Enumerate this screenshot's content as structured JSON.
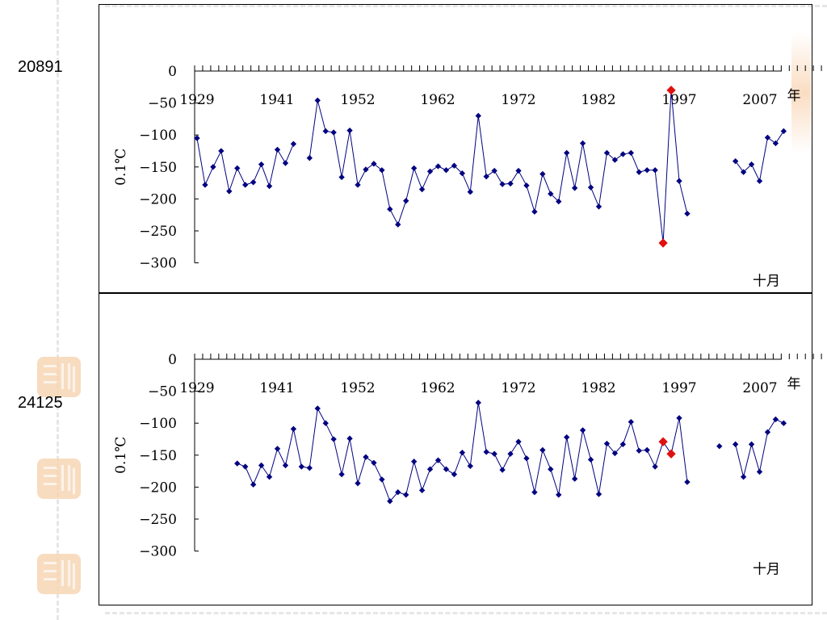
{
  "stations": [
    "20891",
    "24125"
  ],
  "colors": {
    "series": "#000080",
    "highlight": "#e01010"
  },
  "chart_data": [
    {
      "type": "line",
      "station": "20891",
      "ylabel": "0.1℃",
      "xlabel": "年",
      "month": "十月",
      "ylim": [
        -300,
        0
      ],
      "yticks": [
        0,
        -50,
        -100,
        -150,
        -200,
        -250,
        -300
      ],
      "year_labels": [
        "1929",
        "1941",
        "1952",
        "1962",
        "1972",
        "1982",
        "1997",
        "2007"
      ],
      "x_range": [
        1929,
        2009
      ],
      "series": [
        {
          "values": [
            [
              1929,
              -105
            ],
            [
              1930,
              -178
            ],
            [
              1931,
              -150
            ],
            [
              1932,
              -125
            ],
            [
              1933,
              -188
            ],
            [
              1934,
              -152
            ],
            [
              1935,
              -178
            ],
            [
              1936,
              -174
            ],
            [
              1937,
              -146
            ],
            [
              1938,
              -180
            ],
            [
              1939,
              -123
            ],
            [
              1940,
              -144
            ],
            [
              1941,
              -114
            ],
            [
              1943,
              -136
            ],
            [
              1944,
              -46
            ],
            [
              1945,
              -94
            ],
            [
              1946,
              -96
            ],
            [
              1947,
              -166
            ],
            [
              1948,
              -93
            ],
            [
              1949,
              -178
            ],
            [
              1950,
              -154
            ],
            [
              1951,
              -145
            ],
            [
              1952,
              -155
            ],
            [
              1953,
              -216
            ],
            [
              1954,
              -240
            ],
            [
              1955,
              -203
            ],
            [
              1956,
              -152
            ],
            [
              1957,
              -185
            ],
            [
              1958,
              -157
            ],
            [
              1959,
              -149
            ],
            [
              1960,
              -155
            ],
            [
              1961,
              -148
            ],
            [
              1962,
              -160
            ],
            [
              1963,
              -189
            ],
            [
              1964,
              -70
            ],
            [
              1965,
              -165
            ],
            [
              1966,
              -156
            ],
            [
              1967,
              -177
            ],
            [
              1968,
              -176
            ],
            [
              1969,
              -156
            ],
            [
              1970,
              -179
            ],
            [
              1971,
              -220
            ],
            [
              1972,
              -161
            ],
            [
              1973,
              -192
            ],
            [
              1974,
              -204
            ],
            [
              1975,
              -128
            ],
            [
              1976,
              -183
            ],
            [
              1977,
              -113
            ],
            [
              1978,
              -182
            ],
            [
              1979,
              -212
            ],
            [
              1980,
              -128
            ],
            [
              1981,
              -139
            ],
            [
              1982,
              -130
            ],
            [
              1983,
              -128
            ],
            [
              1984,
              -158
            ],
            [
              1985,
              -155
            ],
            [
              1986,
              -155
            ],
            [
              1987,
              -269
            ],
            [
              1988,
              -30
            ],
            [
              1989,
              -172
            ],
            [
              1990,
              -223
            ],
            [
              1996,
              -141
            ],
            [
              1997,
              -158
            ],
            [
              1998,
              -146
            ],
            [
              1999,
              -172
            ],
            [
              2000,
              -104
            ],
            [
              2001,
              -113
            ],
            [
              2002,
              -94
            ]
          ]
        }
      ],
      "highlights": [
        [
          1987,
          -269
        ],
        [
          1988,
          -30
        ]
      ]
    },
    {
      "type": "line",
      "station": "24125",
      "ylabel": "0.1℃",
      "xlabel": "年",
      "month": "十月",
      "ylim": [
        -300,
        0
      ],
      "yticks": [
        0,
        -50,
        -100,
        -150,
        -200,
        -250,
        -300
      ],
      "year_labels": [
        "1929",
        "1941",
        "1952",
        "1962",
        "1972",
        "1982",
        "1997",
        "2007"
      ],
      "x_range": [
        1929,
        2009
      ],
      "series": [
        {
          "values": [
            [
              1934,
              -163
            ],
            [
              1935,
              -168
            ],
            [
              1936,
              -196
            ],
            [
              1937,
              -166
            ],
            [
              1938,
              -184
            ],
            [
              1939,
              -140
            ],
            [
              1940,
              -166
            ],
            [
              1941,
              -109
            ],
            [
              1942,
              -168
            ],
            [
              1943,
              -170
            ],
            [
              1944,
              -77
            ],
            [
              1945,
              -100
            ],
            [
              1946,
              -125
            ],
            [
              1947,
              -180
            ],
            [
              1948,
              -124
            ],
            [
              1949,
              -194
            ],
            [
              1950,
              -153
            ],
            [
              1951,
              -162
            ],
            [
              1952,
              -188
            ],
            [
              1953,
              -222
            ],
            [
              1954,
              -208
            ],
            [
              1955,
              -212
            ],
            [
              1956,
              -160
            ],
            [
              1957,
              -205
            ],
            [
              1958,
              -172
            ],
            [
              1959,
              -158
            ],
            [
              1960,
              -172
            ],
            [
              1961,
              -180
            ],
            [
              1962,
              -146
            ],
            [
              1963,
              -167
            ],
            [
              1964,
              -68
            ],
            [
              1965,
              -145
            ],
            [
              1966,
              -148
            ],
            [
              1967,
              -173
            ],
            [
              1968,
              -148
            ],
            [
              1969,
              -129
            ],
            [
              1970,
              -155
            ],
            [
              1971,
              -208
            ],
            [
              1972,
              -142
            ],
            [
              1973,
              -172
            ],
            [
              1974,
              -212
            ],
            [
              1975,
              -122
            ],
            [
              1976,
              -187
            ],
            [
              1977,
              -111
            ],
            [
              1978,
              -157
            ],
            [
              1979,
              -211
            ],
            [
              1980,
              -132
            ],
            [
              1981,
              -147
            ],
            [
              1982,
              -133
            ],
            [
              1983,
              -98
            ],
            [
              1984,
              -143
            ],
            [
              1985,
              -142
            ],
            [
              1986,
              -168
            ],
            [
              1987,
              -129
            ],
            [
              1988,
              -148
            ],
            [
              1989,
              -92
            ],
            [
              1990,
              -192
            ],
            [
              1994,
              -136
            ],
            [
              1996,
              -133
            ],
            [
              1997,
              -184
            ],
            [
              1998,
              -133
            ],
            [
              1999,
              -176
            ],
            [
              2000,
              -114
            ],
            [
              2001,
              -94
            ],
            [
              2002,
              -100
            ]
          ]
        }
      ],
      "highlights": [
        [
          1987,
          -129
        ],
        [
          1988,
          -148
        ]
      ]
    }
  ]
}
